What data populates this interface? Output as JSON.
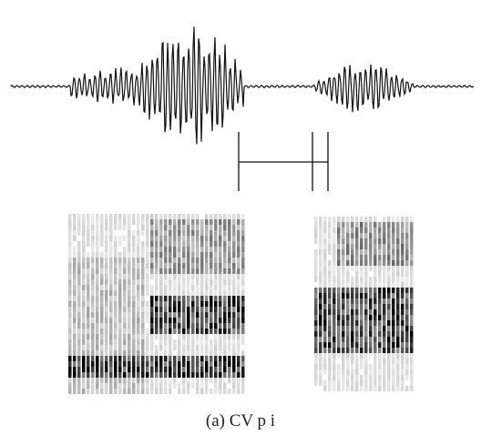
{
  "figure": {
    "caption": "(a) CV p i"
  }
}
